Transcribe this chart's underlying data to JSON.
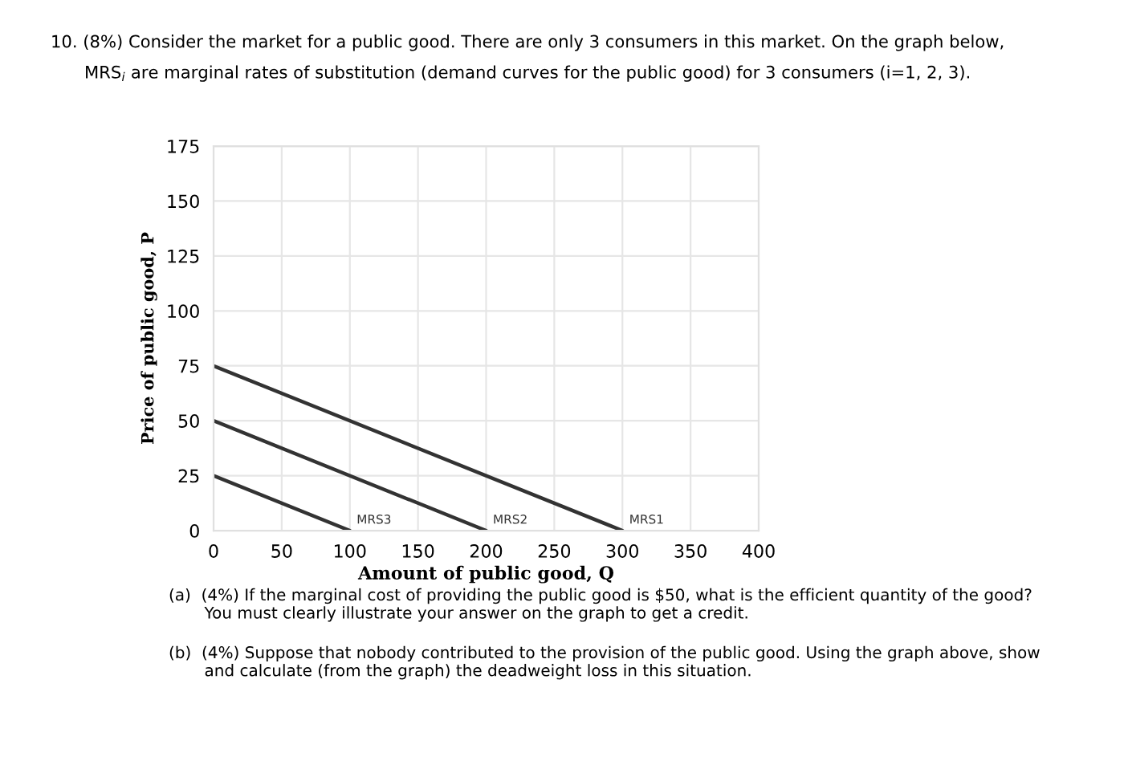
{
  "chart_data": {
    "type": "line",
    "title": "10. (8%) Consider the market for a public good. There are only 3 consumers in this market. On the graph below,",
    "subtitle": "MRS$_{i}$ are marginal rates of substitution (demand curves for the public good) for 3 consumers (i=1, 2, 3).",
    "xlabel": "Amount of public good, Q",
    "ylabel": "Price of public good, P",
    "series": [
      {
        "name": "MRS1",
        "color": "#333333",
        "x": [
          0,
          300
        ],
        "values": [
          75,
          0
        ]
      },
      {
        "name": "MRS2",
        "color": "#333333",
        "x": [
          0,
          200
        ],
        "values": [
          50,
          0
        ]
      },
      {
        "name": "MRS3",
        "color": "#333333",
        "x": [
          0,
          100
        ],
        "values": [
          25,
          0
        ]
      }
    ],
    "xlim": [
      0,
      400
    ],
    "xticks": [
      0,
      50,
      100,
      150,
      200,
      250,
      300,
      350,
      400
    ],
    "ylim": [
      0,
      175
    ],
    "yticks": [
      0,
      25,
      50,
      75,
      100,
      125,
      150,
      175
    ],
    "grid": true,
    "legend": false,
    "annotations": [
      "(a)  (4%) If the marginal cost of providing the public good is $50, what is the efficient quantity of the good?\n       You must clearly illustrate your answer on the graph to get a credit.",
      "(b)  (4%) Suppose that nobody contributed to the provision of the public good. Using the graph above, show\n       and calculate (from the graph) the deadweight loss in this situation."
    ]
  }
}
